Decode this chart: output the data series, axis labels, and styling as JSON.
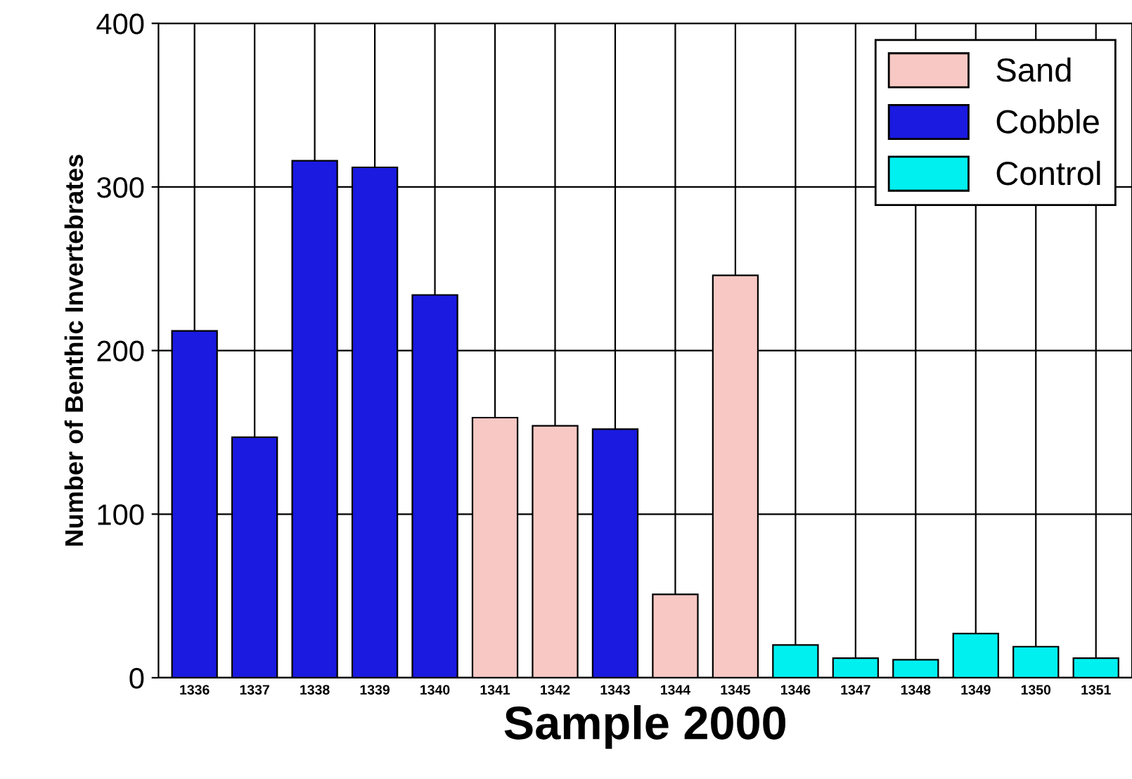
{
  "chart_data": {
    "type": "bar",
    "xlabel": "Sample 2000",
    "ylabel": "Number of Benthic Invertebrates",
    "categories": [
      "1336",
      "1337",
      "1338",
      "1339",
      "1340",
      "1341",
      "1342",
      "1343",
      "1344",
      "1345",
      "1346",
      "1347",
      "1348",
      "1349",
      "1350",
      "1351"
    ],
    "series": [
      {
        "name": "Sand",
        "color": "#f8c8c4",
        "values": [
          null,
          null,
          null,
          null,
          null,
          159,
          154,
          null,
          51,
          246,
          null,
          null,
          null,
          null,
          null,
          null
        ]
      },
      {
        "name": "Cobble",
        "color": "#1a1ae0",
        "values": [
          212,
          147,
          316,
          312,
          234,
          null,
          null,
          152,
          null,
          null,
          null,
          null,
          null,
          null,
          null,
          null
        ]
      },
      {
        "name": "Control",
        "color": "#00f0f0",
        "values": [
          null,
          null,
          null,
          null,
          null,
          null,
          null,
          null,
          null,
          null,
          20,
          12,
          11,
          27,
          19,
          12
        ]
      }
    ],
    "ylim": [
      0,
      400
    ],
    "yticks": [
      0,
      100,
      200,
      300,
      400
    ],
    "grid": true,
    "legend": "top right"
  }
}
